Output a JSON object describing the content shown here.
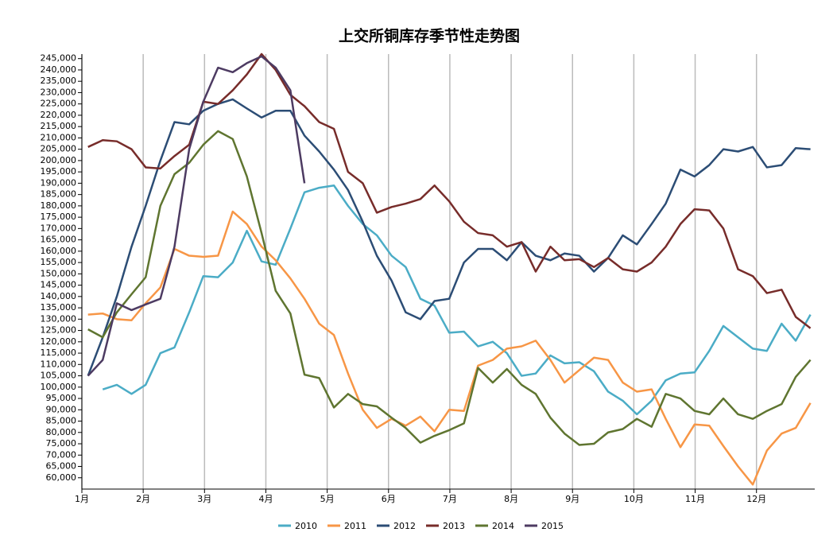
{
  "chart_data": {
    "type": "line",
    "title": "上交所铜库存季节性走势图",
    "x": [
      1.1,
      1.34,
      1.57,
      1.81,
      2.04,
      2.28,
      2.51,
      2.75,
      2.98,
      3.22,
      3.46,
      3.69,
      3.93,
      4.16,
      4.4,
      4.63,
      4.87,
      5.11,
      5.34,
      5.58,
      5.81,
      6.05,
      6.28,
      6.52,
      6.75,
      6.99,
      7.23,
      7.46,
      7.7,
      7.93,
      8.17,
      8.4,
      8.64,
      8.87,
      9.11,
      9.35,
      9.58,
      9.82,
      10.05,
      10.29,
      10.52,
      10.76,
      10.99,
      11.23,
      11.46,
      11.7,
      11.94,
      12.17,
      12.41,
      12.64,
      12.88
    ],
    "xlim": [
      1,
      12.95
    ],
    "xticks": [
      {
        "value": 1,
        "label": "1月"
      },
      {
        "value": 2,
        "label": "2月"
      },
      {
        "value": 3,
        "label": "3月"
      },
      {
        "value": 4,
        "label": "4月"
      },
      {
        "value": 5,
        "label": "5月"
      },
      {
        "value": 6,
        "label": "6月"
      },
      {
        "value": 7,
        "label": "7月"
      },
      {
        "value": 8,
        "label": "8月"
      },
      {
        "value": 9,
        "label": "9月"
      },
      {
        "value": 10,
        "label": "10月"
      },
      {
        "value": 11,
        "label": "11月"
      },
      {
        "value": 12,
        "label": "12月"
      }
    ],
    "ylim": [
      55000,
      247000
    ],
    "yticks": [
      {
        "value": 60000,
        "label": "60,000"
      },
      {
        "value": 65000,
        "label": "65,000"
      },
      {
        "value": 70000,
        "label": "70,000"
      },
      {
        "value": 75000,
        "label": "75,000"
      },
      {
        "value": 80000,
        "label": "80,000"
      },
      {
        "value": 85000,
        "label": "85,000"
      },
      {
        "value": 90000,
        "label": "90,000"
      },
      {
        "value": 95000,
        "label": "95,000"
      },
      {
        "value": 100000,
        "label": "100,000"
      },
      {
        "value": 105000,
        "label": "105,000"
      },
      {
        "value": 110000,
        "label": "110,000"
      },
      {
        "value": 115000,
        "label": "115,000"
      },
      {
        "value": 120000,
        "label": "120,000"
      },
      {
        "value": 125000,
        "label": "125,000"
      },
      {
        "value": 130000,
        "label": "130,000"
      },
      {
        "value": 135000,
        "label": "135,000"
      },
      {
        "value": 140000,
        "label": "140,000"
      },
      {
        "value": 145000,
        "label": "145,000"
      },
      {
        "value": 150000,
        "label": "150,000"
      },
      {
        "value": 155000,
        "label": "155,000"
      },
      {
        "value": 160000,
        "label": "160,000"
      },
      {
        "value": 165000,
        "label": "165,000"
      },
      {
        "value": 170000,
        "label": "170,000"
      },
      {
        "value": 175000,
        "label": "175,000"
      },
      {
        "value": 180000,
        "label": "180,000"
      },
      {
        "value": 185000,
        "label": "185,000"
      },
      {
        "value": 190000,
        "label": "190,000"
      },
      {
        "value": 195000,
        "label": "195,000"
      },
      {
        "value": 200000,
        "label": "200,000"
      },
      {
        "value": 205000,
        "label": "205,000"
      },
      {
        "value": 210000,
        "label": "210,000"
      },
      {
        "value": 215000,
        "label": "215,000"
      },
      {
        "value": 220000,
        "label": "220,000"
      },
      {
        "value": 225000,
        "label": "225,000"
      },
      {
        "value": 230000,
        "label": "230,000"
      },
      {
        "value": 235000,
        "label": "235,000"
      },
      {
        "value": 240000,
        "label": "240,000"
      },
      {
        "value": 245000,
        "label": "245,000"
      }
    ],
    "grid": "x",
    "series": [
      {
        "name": "2010",
        "color": "#4bacc6",
        "values": [
          null,
          99000,
          101000,
          97000,
          101000,
          115000,
          117500,
          133000,
          149000,
          148500,
          155000,
          169000,
          155500,
          154000,
          170000,
          186000,
          188000,
          189000,
          180000,
          172000,
          167000,
          158000,
          153000,
          139000,
          136000,
          124000,
          124500,
          118000,
          120000,
          115000,
          105000,
          106000,
          114000,
          110500,
          111000,
          107000,
          98000,
          94000,
          88000,
          94000,
          103000,
          106000,
          106500,
          116000,
          127000,
          122000,
          117000,
          116000,
          128000,
          120500,
          132000
        ]
      },
      {
        "name": "2011",
        "color": "#f79646",
        "values": [
          132000,
          132500,
          130000,
          129500,
          137000,
          144000,
          161000,
          158000,
          157500,
          158000,
          177500,
          172000,
          162000,
          156000,
          148000,
          139000,
          128000,
          123000,
          106000,
          90000,
          82000,
          86000,
          83000,
          87000,
          80500,
          90000,
          89500,
          109500,
          112000,
          117000,
          118000,
          120500,
          112000,
          102000,
          107500,
          113000,
          112000,
          102000,
          98000,
          99000,
          86000,
          73500,
          83500,
          83000,
          74000,
          65000,
          57000,
          72000,
          79500,
          82000,
          93000
        ]
      },
      {
        "name": "2012",
        "color": "#2c4d75",
        "values": [
          105000,
          122000,
          140000,
          162000,
          180000,
          200000,
          217000,
          216000,
          222000,
          225000,
          227000,
          223000,
          219000,
          222000,
          222000,
          211000,
          204000,
          196000,
          187000,
          173000,
          158000,
          147000,
          133000,
          130000,
          138000,
          139000,
          155000,
          161000,
          161000,
          156000,
          164000,
          158000,
          156000,
          159000,
          158000,
          151000,
          157000,
          167000,
          163000,
          172000,
          181000,
          196000,
          193000,
          198000,
          205000,
          204000,
          206000,
          197000,
          198000,
          205500,
          205000
        ]
      },
      {
        "name": "2013",
        "color": "#772c2a",
        "values": [
          206000,
          209000,
          208500,
          205000,
          197000,
          196500,
          202000,
          207000,
          226000,
          225000,
          231000,
          238000,
          247000,
          240000,
          229000,
          224000,
          217000,
          214000,
          195000,
          190000,
          177000,
          179500,
          181000,
          183000,
          189000,
          182000,
          173000,
          168000,
          167000,
          162000,
          164000,
          151000,
          162000,
          156000,
          156500,
          153000,
          157000,
          152000,
          151000,
          155000,
          162000,
          172000,
          178500,
          178000,
          170000,
          152000,
          149000,
          141500,
          143000,
          131000,
          126000
        ]
      },
      {
        "name": "2014",
        "color": "#5f7530",
        "values": [
          125500,
          122000,
          133000,
          141000,
          148500,
          180000,
          194000,
          199000,
          207000,
          213000,
          209500,
          193000,
          168000,
          142500,
          132500,
          105500,
          104000,
          91000,
          97000,
          92500,
          91500,
          86500,
          82000,
          75500,
          78500,
          81000,
          84000,
          108500,
          102000,
          108000,
          101000,
          97000,
          86500,
          79500,
          74500,
          75000,
          80000,
          81500,
          86000,
          82500,
          97000,
          95000,
          89500,
          88000,
          95000,
          88000,
          86000,
          89500,
          92500,
          104500,
          112000
        ]
      },
      {
        "name": "2015",
        "color": "#4d3b62",
        "values": [
          105000,
          112000,
          137000,
          134000,
          136500,
          139000,
          162000,
          205000,
          226000,
          241000,
          239000,
          243000,
          246000,
          241000,
          231000,
          190000,
          null,
          null,
          null,
          null,
          null,
          null,
          null,
          null,
          null,
          null,
          null,
          null,
          null,
          null,
          null,
          null,
          null,
          null,
          null,
          null,
          null,
          null,
          null,
          null,
          null,
          null,
          null,
          null,
          null,
          null,
          null,
          null,
          null,
          null,
          null
        ]
      }
    ]
  }
}
